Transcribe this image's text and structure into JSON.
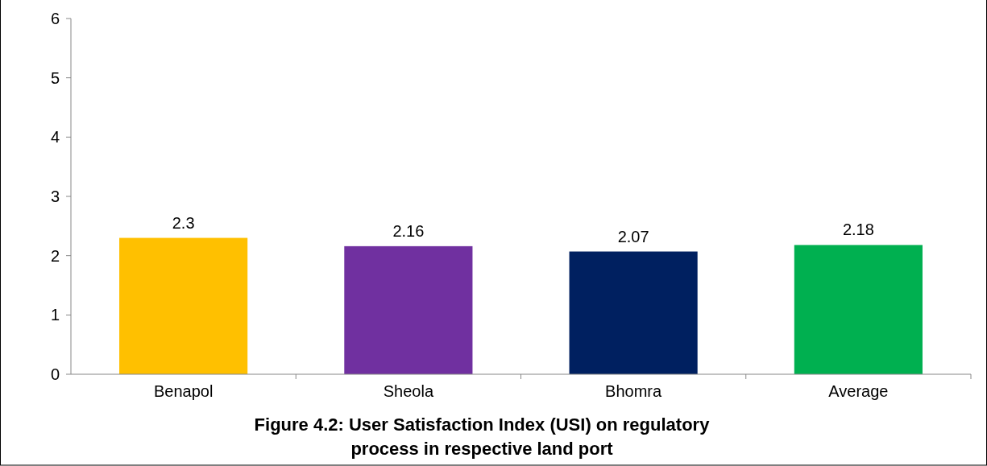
{
  "chart_data": {
    "type": "bar",
    "title": "Figure 4.2: User Satisfaction Index (USI) on regulatory process in respective land port",
    "categories": [
      "Benapol",
      "Sheola",
      "Bhomra",
      "Average"
    ],
    "values": [
      2.3,
      2.16,
      2.07,
      2.18
    ],
    "colors": [
      "#ffc000",
      "#7030a0",
      "#002060",
      "#00b050"
    ],
    "ylim": [
      0,
      6
    ],
    "yticks": [
      0,
      1,
      2,
      3,
      4,
      5,
      6
    ],
    "data_labels": true,
    "grid": false
  }
}
